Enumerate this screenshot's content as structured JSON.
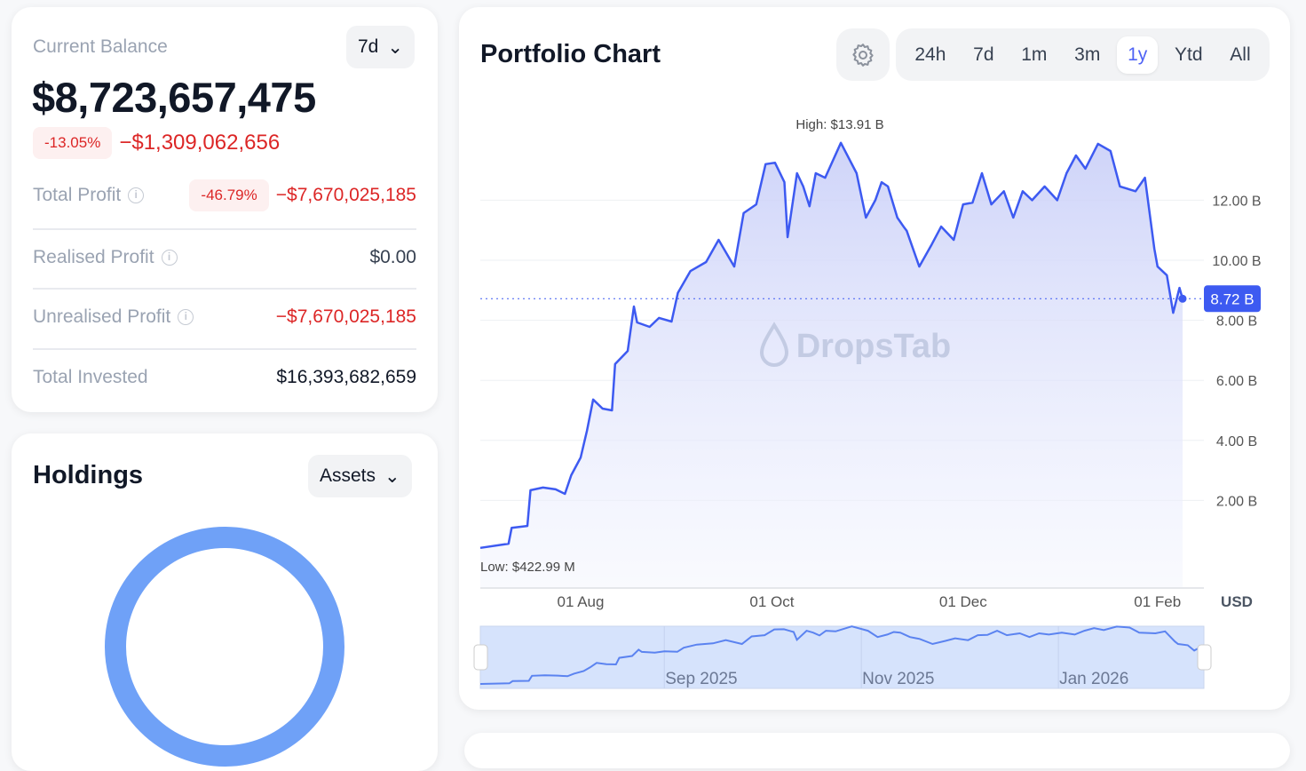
{
  "balance": {
    "label": "Current Balance",
    "period": "7d",
    "value": "$8,723,657,475",
    "change_pct": "-13.05%",
    "change_abs": "−$1,309,062,656",
    "total_profit": {
      "label": "Total Profit",
      "pct": "-46.79%",
      "value": "−$7,670,025,185"
    },
    "realised": {
      "label": "Realised Profit",
      "value": "$0.00"
    },
    "unrealised": {
      "label": "Unrealised Profit",
      "value": "−$7,670,025,185"
    },
    "invested": {
      "label": "Total Invested",
      "value": "$16,393,682,659"
    }
  },
  "holdings": {
    "title": "Holdings",
    "selector": "Assets",
    "donut_color": "#6fa1f7"
  },
  "portfolio": {
    "title": "Portfolio Chart",
    "tabs": [
      "24h",
      "7d",
      "1m",
      "3m",
      "1y",
      "Ytd",
      "All"
    ],
    "active_tab": "1y",
    "watermark": "DropsTab",
    "currency": "USD",
    "navigator_labels": [
      {
        "date": "2025-09-01",
        "label": "Sep 2025"
      },
      {
        "date": "2025-11-01",
        "label": "Nov 2025"
      },
      {
        "date": "2026-01-01",
        "label": "Jan 2026"
      }
    ]
  },
  "chart_data": {
    "type": "area",
    "unit": "B USD",
    "line_color": "#3d5af1",
    "high_label": "High: $13.91 B",
    "low_label": "Low: $422.99 M",
    "current_label": "8.72 B",
    "current_value": 8.72,
    "yticks": [
      {
        "v": 2,
        "label": "2.00 B"
      },
      {
        "v": 4,
        "label": "4.00 B"
      },
      {
        "v": 6,
        "label": "6.00 B"
      },
      {
        "v": 8,
        "label": "8.00 B"
      },
      {
        "v": 10,
        "label": "10.00 B"
      },
      {
        "v": 12,
        "label": "12.00 B"
      }
    ],
    "xticks": [
      {
        "date": "2025-08-01",
        "label": "01 Aug"
      },
      {
        "date": "2025-10-01",
        "label": "01 Oct"
      },
      {
        "date": "2025-12-01",
        "label": "01 Dec"
      },
      {
        "date": "2026-02-01",
        "label": "01 Feb"
      }
    ],
    "xlim": [
      "2025-06-30",
      "2026-02-09"
    ],
    "ylim": [
      0,
      14
    ],
    "grid": true,
    "points": [
      [
        "2025-06-30",
        0.42
      ],
      [
        "2025-07-09",
        0.56
      ],
      [
        "2025-07-10",
        1.09
      ],
      [
        "2025-07-15",
        1.15
      ],
      [
        "2025-07-16",
        2.34
      ],
      [
        "2025-07-20",
        2.43
      ],
      [
        "2025-07-24",
        2.37
      ],
      [
        "2025-07-27",
        2.22
      ],
      [
        "2025-07-29",
        2.84
      ],
      [
        "2025-08-01",
        3.43
      ],
      [
        "2025-08-03",
        4.32
      ],
      [
        "2025-08-05",
        5.36
      ],
      [
        "2025-08-08",
        5.06
      ],
      [
        "2025-08-11",
        5.0
      ],
      [
        "2025-08-12",
        6.54
      ],
      [
        "2025-08-16",
        6.98
      ],
      [
        "2025-08-18",
        8.46
      ],
      [
        "2025-08-19",
        7.93
      ],
      [
        "2025-08-23",
        7.78
      ],
      [
        "2025-08-26",
        8.08
      ],
      [
        "2025-08-30",
        7.96
      ],
      [
        "2025-09-01",
        8.91
      ],
      [
        "2025-09-05",
        9.64
      ],
      [
        "2025-09-10",
        9.94
      ],
      [
        "2025-09-14",
        10.68
      ],
      [
        "2025-09-19",
        9.79
      ],
      [
        "2025-09-22",
        11.57
      ],
      [
        "2025-09-26",
        11.86
      ],
      [
        "2025-09-29",
        13.2
      ],
      [
        "2025-10-02",
        13.25
      ],
      [
        "2025-10-05",
        12.6
      ],
      [
        "2025-10-06",
        10.77
      ],
      [
        "2025-10-09",
        12.9
      ],
      [
        "2025-10-11",
        12.46
      ],
      [
        "2025-10-13",
        11.8
      ],
      [
        "2025-10-15",
        12.9
      ],
      [
        "2025-10-18",
        12.75
      ],
      [
        "2025-10-23",
        13.91
      ],
      [
        "2025-10-28",
        12.9
      ],
      [
        "2025-10-31",
        11.42
      ],
      [
        "2025-11-03",
        12.0
      ],
      [
        "2025-11-05",
        12.6
      ],
      [
        "2025-11-07",
        12.46
      ],
      [
        "2025-11-10",
        11.42
      ],
      [
        "2025-11-12",
        11.12
      ],
      [
        "2025-11-13",
        10.98
      ],
      [
        "2025-11-17",
        9.79
      ],
      [
        "2025-11-21",
        10.53
      ],
      [
        "2025-11-24",
        11.12
      ],
      [
        "2025-11-28",
        10.68
      ],
      [
        "2025-12-01",
        11.86
      ],
      [
        "2025-12-04",
        11.92
      ],
      [
        "2025-12-07",
        12.9
      ],
      [
        "2025-12-10",
        11.86
      ],
      [
        "2025-12-14",
        12.3
      ],
      [
        "2025-12-17",
        11.42
      ],
      [
        "2025-12-20",
        12.3
      ],
      [
        "2025-12-23",
        12.0
      ],
      [
        "2025-12-27",
        12.46
      ],
      [
        "2025-12-31",
        12.0
      ],
      [
        "2026-01-03",
        12.9
      ],
      [
        "2026-01-06",
        13.49
      ],
      [
        "2026-01-09",
        13.05
      ],
      [
        "2026-01-13",
        13.88
      ],
      [
        "2026-01-17",
        13.64
      ],
      [
        "2026-01-20",
        12.46
      ],
      [
        "2026-01-25",
        12.3
      ],
      [
        "2026-01-28",
        12.75
      ],
      [
        "2026-01-31",
        10.38
      ],
      [
        "2026-02-01",
        9.79
      ],
      [
        "2026-02-04",
        9.5
      ],
      [
        "2026-02-06",
        8.25
      ],
      [
        "2026-02-08",
        9.08
      ],
      [
        "2026-02-09",
        8.72
      ]
    ]
  }
}
